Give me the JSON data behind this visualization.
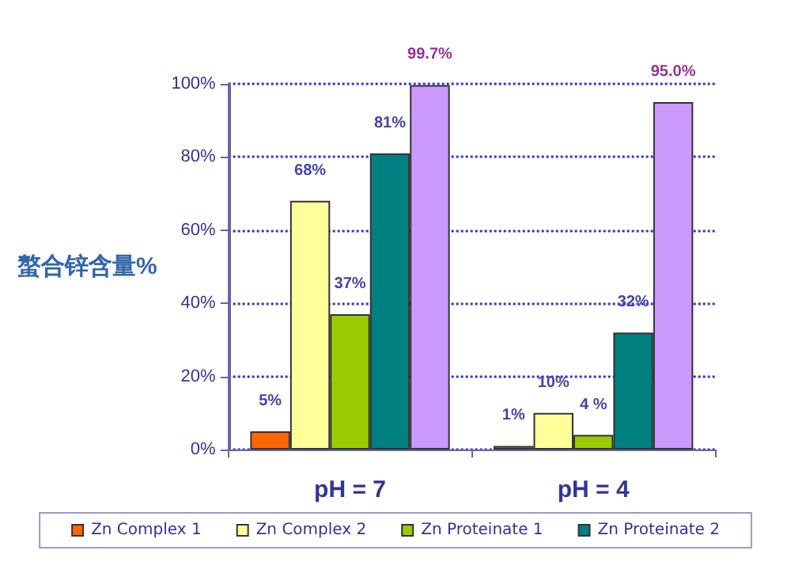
{
  "chart_data": {
    "type": "bar",
    "ylabel": "螯合锌含量%",
    "categories": [
      "pH = 7",
      "pH = 4"
    ],
    "series": [
      {
        "name": "Zn Complex 1",
        "color": "#ff6600",
        "values": [
          5,
          1
        ],
        "value_labels": [
          "5%",
          "1%"
        ]
      },
      {
        "name": "Zn Complex 2",
        "color": "#ffff99",
        "values": [
          68,
          10
        ],
        "value_labels": [
          "68%",
          "10%"
        ]
      },
      {
        "name": "Zn Proteinate 1",
        "color": "#99cc00",
        "values": [
          37,
          4
        ],
        "value_labels": [
          "37%",
          "4 %"
        ]
      },
      {
        "name": "Zn Proteinate 2",
        "color": "#008080",
        "values": [
          81,
          32
        ],
        "value_labels": [
          "81%",
          "32%"
        ]
      },
      {
        "color": "#cc99ff",
        "values": [
          99.7,
          95.0
        ],
        "value_labels": [
          "99.7%",
          "95.0%"
        ]
      }
    ],
    "ylim": [
      0,
      100
    ],
    "yticks": [
      {
        "value": 0,
        "label": "0%"
      },
      {
        "value": 20,
        "label": "20%"
      },
      {
        "value": 40,
        "label": "40%"
      },
      {
        "value": 60,
        "label": "60%"
      },
      {
        "value": 80,
        "label": "80%"
      },
      {
        "value": 100,
        "label": "100%"
      }
    ],
    "grid": "y",
    "legend": "bottom"
  }
}
